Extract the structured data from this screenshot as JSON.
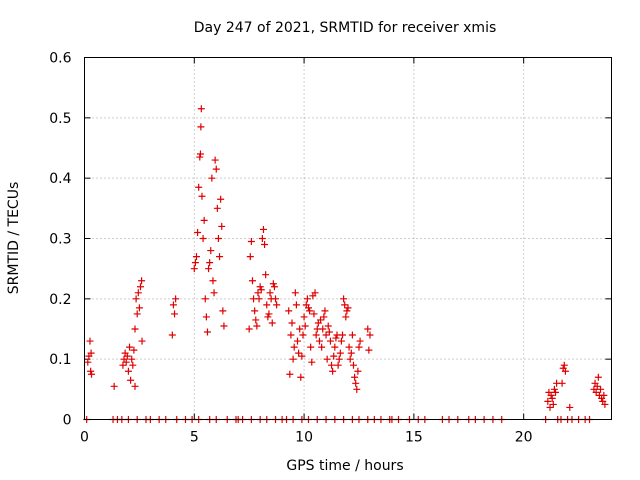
{
  "chart_data": {
    "type": "scatter",
    "title": "Day 247 of 2021, SRMTID for receiver xmis",
    "xlabel": "GPS time / hours",
    "ylabel": "SRMTID / TECUs",
    "xlim": [
      0,
      24
    ],
    "ylim": [
      0,
      0.6
    ],
    "xticks": [
      0,
      5,
      10,
      15,
      20
    ],
    "yticks": [
      0,
      0.1,
      0.2,
      0.3,
      0.4,
      0.5,
      0.6
    ],
    "grid": true,
    "marker": "+",
    "color": "#e00000",
    "series": [
      {
        "name": "SRMTID",
        "points": [
          [
            0.1,
            0.0
          ],
          [
            0.15,
            0.095
          ],
          [
            0.2,
            0.105
          ],
          [
            0.25,
            0.13
          ],
          [
            0.28,
            0.08
          ],
          [
            0.3,
            0.11
          ],
          [
            0.32,
            0.075
          ],
          [
            1.3,
            0.0
          ],
          [
            1.35,
            0.055
          ],
          [
            1.5,
            0.0
          ],
          [
            1.7,
            0.0
          ],
          [
            1.75,
            0.09
          ],
          [
            1.8,
            0.1
          ],
          [
            1.85,
            0.11
          ],
          [
            1.9,
            0.095
          ],
          [
            1.95,
            0.105
          ],
          [
            2.0,
            0.08
          ],
          [
            2.05,
            0.12
          ],
          [
            2.1,
            0.065
          ],
          [
            2.15,
            0.1
          ],
          [
            2.2,
            0.09
          ],
          [
            2.25,
            0.115
          ],
          [
            2.3,
            0.055
          ],
          [
            2.3,
            0.15
          ],
          [
            2.35,
            0.2
          ],
          [
            2.4,
            0.175
          ],
          [
            2.45,
            0.21
          ],
          [
            2.5,
            0.185
          ],
          [
            2.55,
            0.22
          ],
          [
            2.6,
            0.23
          ],
          [
            2.62,
            0.13
          ],
          [
            2.0,
            0.0
          ],
          [
            2.4,
            0.0
          ],
          [
            2.8,
            0.0
          ],
          [
            3.0,
            0.0
          ],
          [
            3.4,
            0.0
          ],
          [
            3.7,
            0.0
          ],
          [
            4.0,
            0.14
          ],
          [
            4.05,
            0.19
          ],
          [
            4.1,
            0.175
          ],
          [
            4.15,
            0.2
          ],
          [
            4.2,
            0.0
          ],
          [
            4.6,
            0.0
          ],
          [
            4.9,
            0.0
          ],
          [
            5.0,
            0.25
          ],
          [
            5.05,
            0.26
          ],
          [
            5.1,
            0.27
          ],
          [
            5.15,
            0.31
          ],
          [
            5.2,
            0.385
          ],
          [
            5.25,
            0.435
          ],
          [
            5.28,
            0.44
          ],
          [
            5.3,
            0.485
          ],
          [
            5.32,
            0.515
          ],
          [
            5.35,
            0.37
          ],
          [
            5.4,
            0.3
          ],
          [
            5.45,
            0.33
          ],
          [
            5.5,
            0.2
          ],
          [
            5.55,
            0.17
          ],
          [
            5.6,
            0.145
          ],
          [
            5.65,
            0.25
          ],
          [
            5.7,
            0.26
          ],
          [
            5.75,
            0.28
          ],
          [
            5.8,
            0.4
          ],
          [
            5.85,
            0.23
          ],
          [
            5.9,
            0.21
          ],
          [
            5.95,
            0.43
          ],
          [
            6.0,
            0.415
          ],
          [
            6.05,
            0.35
          ],
          [
            6.1,
            0.3
          ],
          [
            6.15,
            0.27
          ],
          [
            6.2,
            0.365
          ],
          [
            6.25,
            0.32
          ],
          [
            6.3,
            0.18
          ],
          [
            6.35,
            0.155
          ],
          [
            5.2,
            0.0
          ],
          [
            5.7,
            0.0
          ],
          [
            6.0,
            0.0
          ],
          [
            6.5,
            0.0
          ],
          [
            6.9,
            0.0
          ],
          [
            7.0,
            0.0
          ],
          [
            7.2,
            0.0
          ],
          [
            7.5,
            0.15
          ],
          [
            7.55,
            0.27
          ],
          [
            7.6,
            0.295
          ],
          [
            7.65,
            0.23
          ],
          [
            7.7,
            0.2
          ],
          [
            7.75,
            0.18
          ],
          [
            7.8,
            0.165
          ],
          [
            7.85,
            0.155
          ],
          [
            7.9,
            0.21
          ],
          [
            7.95,
            0.2
          ],
          [
            8.0,
            0.22
          ],
          [
            8.05,
            0.215
          ],
          [
            8.1,
            0.3
          ],
          [
            8.15,
            0.315
          ],
          [
            8.2,
            0.29
          ],
          [
            8.25,
            0.24
          ],
          [
            8.3,
            0.19
          ],
          [
            8.35,
            0.17
          ],
          [
            8.4,
            0.175
          ],
          [
            8.45,
            0.21
          ],
          [
            8.5,
            0.2
          ],
          [
            8.55,
            0.16
          ],
          [
            8.6,
            0.225
          ],
          [
            8.65,
            0.22
          ],
          [
            8.7,
            0.2
          ],
          [
            8.75,
            0.19
          ],
          [
            7.6,
            0.0
          ],
          [
            8.0,
            0.0
          ],
          [
            8.3,
            0.0
          ],
          [
            8.7,
            0.0
          ],
          [
            9.0,
            0.0
          ],
          [
            9.2,
            0.0
          ],
          [
            9.3,
            0.18
          ],
          [
            9.35,
            0.075
          ],
          [
            9.4,
            0.14
          ],
          [
            9.45,
            0.16
          ],
          [
            9.5,
            0.1
          ],
          [
            9.55,
            0.12
          ],
          [
            9.6,
            0.21
          ],
          [
            9.65,
            0.19
          ],
          [
            9.7,
            0.13
          ],
          [
            9.75,
            0.11
          ],
          [
            9.8,
            0.15
          ],
          [
            9.85,
            0.07
          ],
          [
            9.9,
            0.105
          ],
          [
            9.95,
            0.14
          ],
          [
            10.0,
            0.17
          ],
          [
            10.05,
            0.155
          ],
          [
            10.1,
            0.19
          ],
          [
            10.15,
            0.2
          ],
          [
            10.2,
            0.185
          ],
          [
            10.25,
            0.18
          ],
          [
            10.3,
            0.12
          ],
          [
            10.35,
            0.095
          ],
          [
            10.4,
            0.205
          ],
          [
            10.45,
            0.175
          ],
          [
            10.5,
            0.21
          ],
          [
            10.55,
            0.14
          ],
          [
            10.6,
            0.15
          ],
          [
            10.65,
            0.16
          ],
          [
            10.7,
            0.13
          ],
          [
            10.75,
            0.165
          ],
          [
            10.8,
            0.12
          ],
          [
            10.85,
            0.15
          ],
          [
            10.9,
            0.17
          ],
          [
            10.95,
            0.18
          ],
          [
            11.0,
            0.14
          ],
          [
            11.05,
            0.1
          ],
          [
            11.1,
            0.155
          ],
          [
            11.15,
            0.145
          ],
          [
            11.2,
            0.13
          ],
          [
            11.25,
            0.09
          ],
          [
            11.3,
            0.08
          ],
          [
            11.35,
            0.105
          ],
          [
            11.4,
            0.12
          ],
          [
            11.45,
            0.135
          ],
          [
            11.5,
            0.14
          ],
          [
            11.55,
            0.09
          ],
          [
            11.6,
            0.1
          ],
          [
            11.65,
            0.11
          ],
          [
            11.7,
            0.13
          ],
          [
            11.75,
            0.14
          ],
          [
            11.8,
            0.2
          ],
          [
            11.85,
            0.19
          ],
          [
            11.9,
            0.17
          ],
          [
            11.95,
            0.18
          ],
          [
            12.0,
            0.185
          ],
          [
            12.05,
            0.12
          ],
          [
            12.1,
            0.1
          ],
          [
            12.15,
            0.11
          ],
          [
            12.2,
            0.14
          ],
          [
            12.25,
            0.09
          ],
          [
            12.3,
            0.07
          ],
          [
            12.35,
            0.06
          ],
          [
            12.4,
            0.05
          ],
          [
            12.45,
            0.08
          ],
          [
            12.5,
            0.12
          ],
          [
            12.55,
            0.13
          ],
          [
            12.9,
            0.15
          ],
          [
            12.95,
            0.115
          ],
          [
            13.0,
            0.14
          ],
          [
            9.5,
            0.0
          ],
          [
            9.9,
            0.0
          ],
          [
            10.2,
            0.0
          ],
          [
            10.6,
            0.0
          ],
          [
            11.0,
            0.0
          ],
          [
            11.4,
            0.0
          ],
          [
            11.8,
            0.0
          ],
          [
            12.2,
            0.0
          ],
          [
            12.5,
            0.0
          ],
          [
            12.9,
            0.0
          ],
          [
            13.2,
            0.0
          ],
          [
            13.5,
            0.0
          ],
          [
            13.9,
            0.0
          ],
          [
            14.0,
            0.0
          ],
          [
            14.3,
            0.0
          ],
          [
            14.8,
            0.0
          ],
          [
            15.2,
            0.0
          ],
          [
            15.5,
            0.0
          ],
          [
            16.3,
            0.0
          ],
          [
            16.6,
            0.0
          ],
          [
            17.0,
            0.0
          ],
          [
            17.5,
            0.0
          ],
          [
            17.8,
            0.0
          ],
          [
            18.2,
            0.0
          ],
          [
            18.6,
            0.0
          ],
          [
            19.0,
            0.0
          ],
          [
            21.0,
            0.0
          ],
          [
            21.1,
            0.03
          ],
          [
            21.15,
            0.045
          ],
          [
            21.2,
            0.02
          ],
          [
            21.25,
            0.04
          ],
          [
            21.3,
            0.035
          ],
          [
            21.35,
            0.025
          ],
          [
            21.4,
            0.05
          ],
          [
            21.45,
            0.045
          ],
          [
            21.5,
            0.06
          ],
          [
            21.55,
            0.0
          ],
          [
            21.7,
            0.0
          ],
          [
            21.75,
            0.06
          ],
          [
            21.8,
            0.085
          ],
          [
            21.85,
            0.09
          ],
          [
            21.9,
            0.08
          ],
          [
            22.0,
            0.0
          ],
          [
            22.1,
            0.02
          ],
          [
            22.2,
            0.0
          ],
          [
            22.5,
            0.0
          ],
          [
            22.8,
            0.0
          ],
          [
            23.0,
            0.0
          ],
          [
            23.2,
            0.05
          ],
          [
            23.25,
            0.06
          ],
          [
            23.3,
            0.045
          ],
          [
            23.35,
            0.055
          ],
          [
            23.4,
            0.07
          ],
          [
            23.45,
            0.04
          ],
          [
            23.5,
            0.05
          ],
          [
            23.55,
            0.035
          ],
          [
            23.6,
            0.03
          ],
          [
            23.65,
            0.04
          ],
          [
            23.7,
            0.025
          ]
        ]
      }
    ]
  }
}
